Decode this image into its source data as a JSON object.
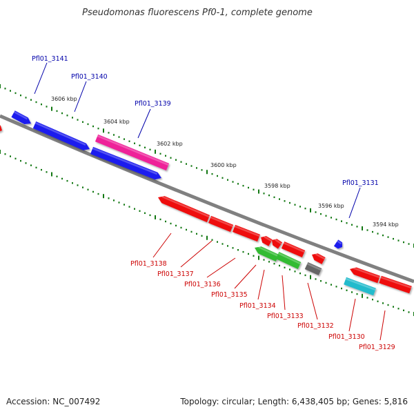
{
  "title": "Pseudomonas fluorescens Pf0-1, complete genome",
  "footer": {
    "accession": "Accession: NC_007492",
    "summary": "Topology: circular; Length: 6,438,405 bp; Genes: 5,816"
  },
  "colors": {
    "forward_label": "#0000aa",
    "reverse_label": "#cc0000",
    "backbone": "#808080",
    "ticks": "#117711",
    "blue": "#1a1aee",
    "red": "#ee1111",
    "magenta": "#ee2299",
    "green": "#33bb33",
    "cyan": "#22bbcc",
    "gray": "#666666"
  },
  "scale_labels": [
    "3606 kbp",
    "3604 kbp",
    "3602 kbp",
    "3600 kbp",
    "3598 kbp",
    "3596 kbp",
    "3594 kbp"
  ],
  "genes_forward": [
    "Pfl01_3141",
    "Pfl01_3140",
    "Pfl01_3139",
    "Pfl01_3131"
  ],
  "genes_reverse": [
    "Pfl01_3138",
    "Pfl01_3137",
    "Pfl01_3136",
    "Pfl01_3135",
    "Pfl01_3134",
    "Pfl01_3133",
    "Pfl01_3132",
    "Pfl01_3130",
    "Pfl01_3129"
  ]
}
